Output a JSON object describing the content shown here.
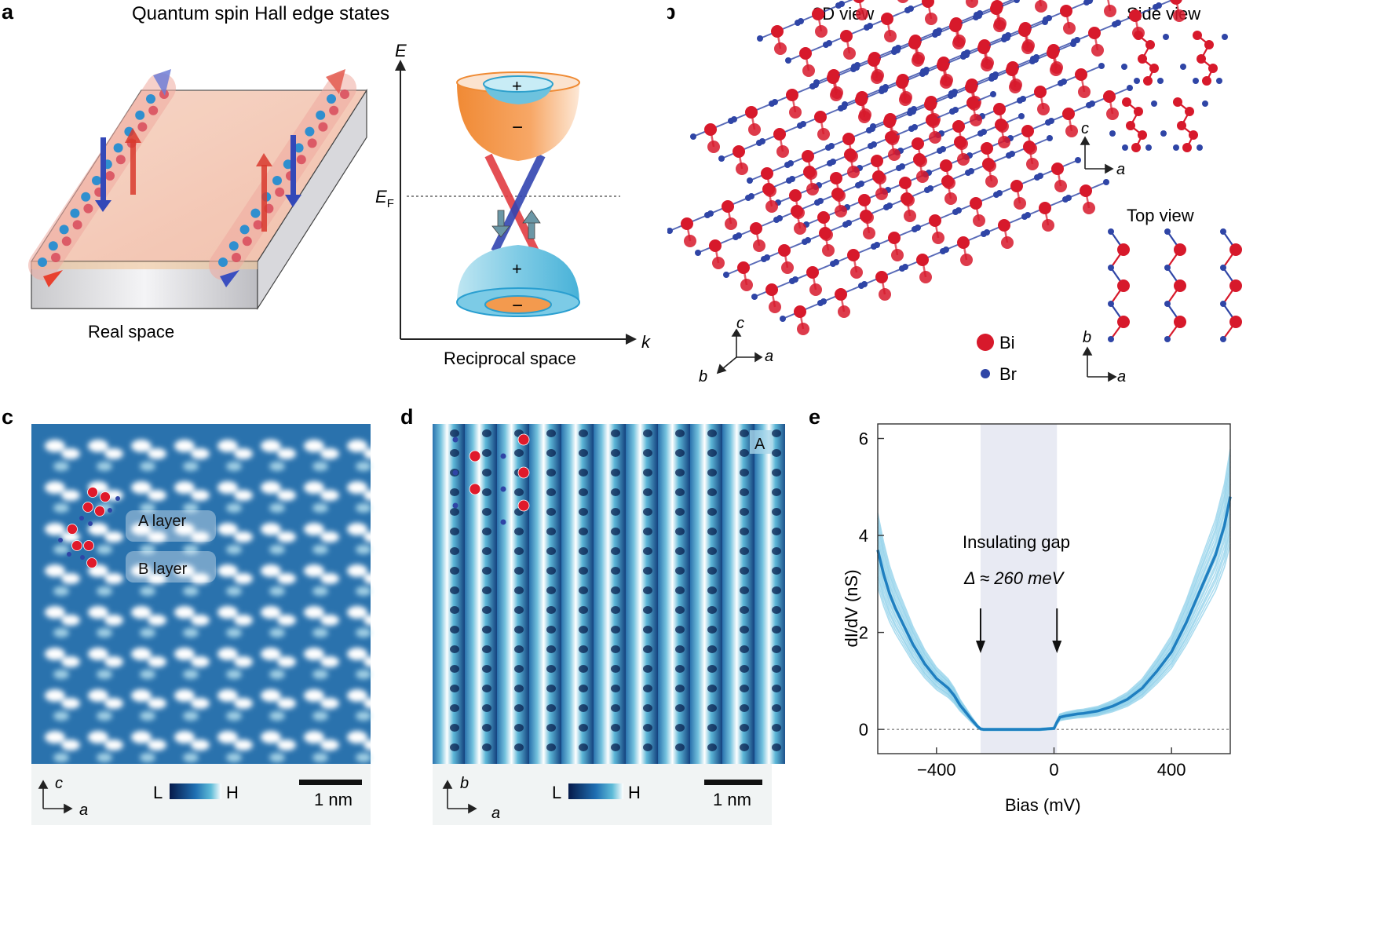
{
  "panel_a": {
    "letter": "a",
    "title": "Quantum spin Hall edge states",
    "real_space_label": "Real space",
    "reciprocal_space_label": "Reciprocal space",
    "e_axis": "E",
    "k_axis": "k",
    "ef_main": "E",
    "ef_sub": "F",
    "plus": "+",
    "minus": "−"
  },
  "panel_b": {
    "letter": "b",
    "view_3d": "3D view",
    "side_view": "Side view",
    "top_view": "Top view",
    "legend": [
      {
        "label": "Bi",
        "color": "#d7192b"
      },
      {
        "label": "Br",
        "color": "#2f45a6"
      }
    ],
    "axis_a": "a",
    "axis_b": "b",
    "axis_c": "c"
  },
  "panel_c": {
    "letter": "c",
    "a_layer": "A layer",
    "b_layer": "B layer",
    "colorbar_low": "L",
    "colorbar_high": "H",
    "scalebar": "1 nm",
    "axis_a": "a",
    "axis_c": "c"
  },
  "panel_d": {
    "letter": "d",
    "corner_label": "A",
    "colorbar_low": "L",
    "colorbar_high": "H",
    "scalebar": "1 nm",
    "axis_a": "a",
    "axis_b": "b"
  },
  "panel_e": {
    "letter": "e",
    "ylabel": "dI/dV (nS)",
    "xlabel": "Bias (mV)",
    "gap_label": "Insulating gap",
    "gap_value": "Δ ≈ 260 meV",
    "colors": {
      "mean": "#1f7fc0",
      "individual": "#8fd0ea",
      "gap_band": "#e8eaf3"
    }
  },
  "chart_data": {
    "type": "line",
    "xlabel": "Bias (mV)",
    "ylabel": "dI/dV (nS)",
    "xlim": [
      -600,
      600
    ],
    "ylim": [
      -0.5,
      6.3
    ],
    "xticks": [
      -400,
      0,
      400
    ],
    "yticks": [
      0,
      2,
      4,
      6
    ],
    "gap_region": [
      -250,
      10
    ],
    "arrows_at": [
      -250,
      10
    ],
    "series": [
      {
        "x": [
          -600,
          -580,
          -560,
          -540,
          -520,
          -500,
          -480,
          -460,
          -440,
          -420,
          -400,
          -380,
          -360,
          -340,
          -320,
          -300,
          -280,
          -260,
          -250,
          -240,
          -200,
          -150,
          -100,
          -50,
          0,
          10,
          20,
          40,
          60,
          80,
          100,
          150,
          200,
          250,
          300,
          350,
          400,
          450,
          500,
          550,
          580,
          600
        ],
        "y": [
          3.7,
          3.2,
          2.8,
          2.5,
          2.25,
          2.0,
          1.75,
          1.55,
          1.35,
          1.2,
          1.05,
          0.95,
          0.85,
          0.7,
          0.5,
          0.35,
          0.2,
          0.06,
          0.01,
          0.0,
          0.0,
          0.0,
          0.0,
          0.0,
          0.02,
          0.15,
          0.25,
          0.28,
          0.3,
          0.32,
          0.33,
          0.38,
          0.48,
          0.62,
          0.85,
          1.2,
          1.6,
          2.2,
          2.9,
          3.6,
          4.2,
          4.8
        ]
      }
    ]
  }
}
